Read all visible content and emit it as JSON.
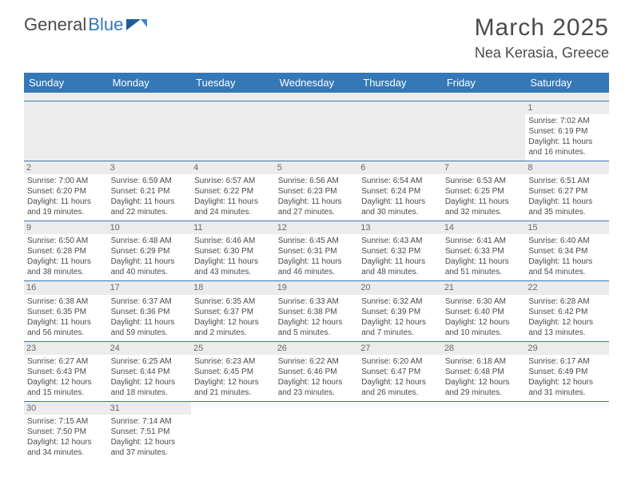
{
  "brand": {
    "word1": "General",
    "word2": "Blue",
    "color_dark": "#4a4a4a",
    "color_blue": "#3478b8"
  },
  "title": "March 2025",
  "location": "Nea Kerasia, Greece",
  "day_headers": [
    "Sunday",
    "Monday",
    "Tuesday",
    "Wednesday",
    "Thursday",
    "Friday",
    "Saturday"
  ],
  "header_bg": "#3478b8",
  "cell_shade": "#ececec",
  "weeks": [
    [
      null,
      null,
      null,
      null,
      null,
      null,
      {
        "n": "1",
        "sr": "Sunrise: 7:02 AM",
        "ss": "Sunset: 6:19 PM",
        "d1": "Daylight: 11 hours",
        "d2": "and 16 minutes."
      }
    ],
    [
      {
        "n": "2",
        "sr": "Sunrise: 7:00 AM",
        "ss": "Sunset: 6:20 PM",
        "d1": "Daylight: 11 hours",
        "d2": "and 19 minutes."
      },
      {
        "n": "3",
        "sr": "Sunrise: 6:59 AM",
        "ss": "Sunset: 6:21 PM",
        "d1": "Daylight: 11 hours",
        "d2": "and 22 minutes."
      },
      {
        "n": "4",
        "sr": "Sunrise: 6:57 AM",
        "ss": "Sunset: 6:22 PM",
        "d1": "Daylight: 11 hours",
        "d2": "and 24 minutes."
      },
      {
        "n": "5",
        "sr": "Sunrise: 6:56 AM",
        "ss": "Sunset: 6:23 PM",
        "d1": "Daylight: 11 hours",
        "d2": "and 27 minutes."
      },
      {
        "n": "6",
        "sr": "Sunrise: 6:54 AM",
        "ss": "Sunset: 6:24 PM",
        "d1": "Daylight: 11 hours",
        "d2": "and 30 minutes."
      },
      {
        "n": "7",
        "sr": "Sunrise: 6:53 AM",
        "ss": "Sunset: 6:25 PM",
        "d1": "Daylight: 11 hours",
        "d2": "and 32 minutes."
      },
      {
        "n": "8",
        "sr": "Sunrise: 6:51 AM",
        "ss": "Sunset: 6:27 PM",
        "d1": "Daylight: 11 hours",
        "d2": "and 35 minutes."
      }
    ],
    [
      {
        "n": "9",
        "sr": "Sunrise: 6:50 AM",
        "ss": "Sunset: 6:28 PM",
        "d1": "Daylight: 11 hours",
        "d2": "and 38 minutes."
      },
      {
        "n": "10",
        "sr": "Sunrise: 6:48 AM",
        "ss": "Sunset: 6:29 PM",
        "d1": "Daylight: 11 hours",
        "d2": "and 40 minutes."
      },
      {
        "n": "11",
        "sr": "Sunrise: 6:46 AM",
        "ss": "Sunset: 6:30 PM",
        "d1": "Daylight: 11 hours",
        "d2": "and 43 minutes."
      },
      {
        "n": "12",
        "sr": "Sunrise: 6:45 AM",
        "ss": "Sunset: 6:31 PM",
        "d1": "Daylight: 11 hours",
        "d2": "and 46 minutes."
      },
      {
        "n": "13",
        "sr": "Sunrise: 6:43 AM",
        "ss": "Sunset: 6:32 PM",
        "d1": "Daylight: 11 hours",
        "d2": "and 48 minutes."
      },
      {
        "n": "14",
        "sr": "Sunrise: 6:41 AM",
        "ss": "Sunset: 6:33 PM",
        "d1": "Daylight: 11 hours",
        "d2": "and 51 minutes."
      },
      {
        "n": "15",
        "sr": "Sunrise: 6:40 AM",
        "ss": "Sunset: 6:34 PM",
        "d1": "Daylight: 11 hours",
        "d2": "and 54 minutes."
      }
    ],
    [
      {
        "n": "16",
        "sr": "Sunrise: 6:38 AM",
        "ss": "Sunset: 6:35 PM",
        "d1": "Daylight: 11 hours",
        "d2": "and 56 minutes."
      },
      {
        "n": "17",
        "sr": "Sunrise: 6:37 AM",
        "ss": "Sunset: 6:36 PM",
        "d1": "Daylight: 11 hours",
        "d2": "and 59 minutes."
      },
      {
        "n": "18",
        "sr": "Sunrise: 6:35 AM",
        "ss": "Sunset: 6:37 PM",
        "d1": "Daylight: 12 hours",
        "d2": "and 2 minutes."
      },
      {
        "n": "19",
        "sr": "Sunrise: 6:33 AM",
        "ss": "Sunset: 6:38 PM",
        "d1": "Daylight: 12 hours",
        "d2": "and 5 minutes."
      },
      {
        "n": "20",
        "sr": "Sunrise: 6:32 AM",
        "ss": "Sunset: 6:39 PM",
        "d1": "Daylight: 12 hours",
        "d2": "and 7 minutes."
      },
      {
        "n": "21",
        "sr": "Sunrise: 6:30 AM",
        "ss": "Sunset: 6:40 PM",
        "d1": "Daylight: 12 hours",
        "d2": "and 10 minutes."
      },
      {
        "n": "22",
        "sr": "Sunrise: 6:28 AM",
        "ss": "Sunset: 6:42 PM",
        "d1": "Daylight: 12 hours",
        "d2": "and 13 minutes."
      }
    ],
    [
      {
        "n": "23",
        "sr": "Sunrise: 6:27 AM",
        "ss": "Sunset: 6:43 PM",
        "d1": "Daylight: 12 hours",
        "d2": "and 15 minutes."
      },
      {
        "n": "24",
        "sr": "Sunrise: 6:25 AM",
        "ss": "Sunset: 6:44 PM",
        "d1": "Daylight: 12 hours",
        "d2": "and 18 minutes."
      },
      {
        "n": "25",
        "sr": "Sunrise: 6:23 AM",
        "ss": "Sunset: 6:45 PM",
        "d1": "Daylight: 12 hours",
        "d2": "and 21 minutes."
      },
      {
        "n": "26",
        "sr": "Sunrise: 6:22 AM",
        "ss": "Sunset: 6:46 PM",
        "d1": "Daylight: 12 hours",
        "d2": "and 23 minutes."
      },
      {
        "n": "27",
        "sr": "Sunrise: 6:20 AM",
        "ss": "Sunset: 6:47 PM",
        "d1": "Daylight: 12 hours",
        "d2": "and 26 minutes."
      },
      {
        "n": "28",
        "sr": "Sunrise: 6:18 AM",
        "ss": "Sunset: 6:48 PM",
        "d1": "Daylight: 12 hours",
        "d2": "and 29 minutes."
      },
      {
        "n": "29",
        "sr": "Sunrise: 6:17 AM",
        "ss": "Sunset: 6:49 PM",
        "d1": "Daylight: 12 hours",
        "d2": "and 31 minutes."
      }
    ],
    [
      {
        "n": "30",
        "sr": "Sunrise: 7:15 AM",
        "ss": "Sunset: 7:50 PM",
        "d1": "Daylight: 12 hours",
        "d2": "and 34 minutes."
      },
      {
        "n": "31",
        "sr": "Sunrise: 7:14 AM",
        "ss": "Sunset: 7:51 PM",
        "d1": "Daylight: 12 hours",
        "d2": "and 37 minutes."
      },
      null,
      null,
      null,
      null,
      null
    ]
  ]
}
